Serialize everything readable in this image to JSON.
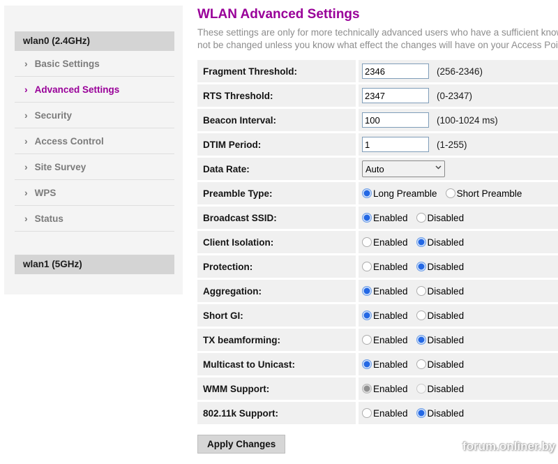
{
  "page": {
    "title": "WLAN Advanced Settings",
    "description_line1": "These settings are only for more technically advanced users who have a sufficient knowledge about wireless LAN. These settings should",
    "description_line2": "not be changed unless you know what effect the changes will have on your Access Point."
  },
  "sidebar": {
    "chevron": "›",
    "sections": [
      {
        "header": "wlan0 (2.4GHz)"
      },
      {
        "header": "wlan1 (5GHz)"
      }
    ],
    "items": [
      {
        "id": "basic-settings",
        "label": "Basic Settings",
        "active": false
      },
      {
        "id": "advanced-settings",
        "label": "Advanced Settings",
        "active": true
      },
      {
        "id": "security",
        "label": "Security",
        "active": false
      },
      {
        "id": "access-control",
        "label": "Access Control",
        "active": false
      },
      {
        "id": "site-survey",
        "label": "Site Survey",
        "active": false
      },
      {
        "id": "wps",
        "label": "WPS",
        "active": false
      },
      {
        "id": "status",
        "label": "Status",
        "active": false
      }
    ]
  },
  "form": {
    "rows": [
      {
        "id": "fragment-threshold",
        "label": "Fragment Threshold:",
        "type": "input",
        "value": "2346",
        "hint": "(256-2346)"
      },
      {
        "id": "rts-threshold",
        "label": "RTS Threshold:",
        "type": "input",
        "value": "2347",
        "hint": "(0-2347)"
      },
      {
        "id": "beacon-interval",
        "label": "Beacon Interval:",
        "type": "input",
        "value": "100",
        "hint": "(100-1024 ms)"
      },
      {
        "id": "dtim-period",
        "label": "DTIM Period:",
        "type": "input",
        "value": "1",
        "hint": "(1-255)"
      },
      {
        "id": "data-rate",
        "label": "Data Rate:",
        "type": "select",
        "value": "Auto"
      },
      {
        "id": "preamble-type",
        "label": "Preamble Type:",
        "type": "radio",
        "options": [
          {
            "label": "Long Preamble",
            "checked": true
          },
          {
            "label": "Short Preamble",
            "checked": false
          }
        ]
      },
      {
        "id": "broadcast-ssid",
        "label": "Broadcast SSID:",
        "type": "radio",
        "options": [
          {
            "label": "Enabled",
            "checked": true
          },
          {
            "label": "Disabled",
            "checked": false
          }
        ]
      },
      {
        "id": "client-isolation",
        "label": "Client Isolation:",
        "type": "radio",
        "options": [
          {
            "label": "Enabled",
            "checked": false
          },
          {
            "label": "Disabled",
            "checked": true
          }
        ]
      },
      {
        "id": "protection",
        "label": "Protection:",
        "type": "radio",
        "options": [
          {
            "label": "Enabled",
            "checked": false
          },
          {
            "label": "Disabled",
            "checked": true
          }
        ]
      },
      {
        "id": "aggregation",
        "label": "Aggregation:",
        "type": "radio",
        "options": [
          {
            "label": "Enabled",
            "checked": true
          },
          {
            "label": "Disabled",
            "checked": false
          }
        ]
      },
      {
        "id": "short-gi",
        "label": "Short GI:",
        "type": "radio",
        "options": [
          {
            "label": "Enabled",
            "checked": true
          },
          {
            "label": "Disabled",
            "checked": false
          }
        ]
      },
      {
        "id": "tx-beamforming",
        "label": "TX beamforming:",
        "type": "radio",
        "options": [
          {
            "label": "Enabled",
            "checked": false
          },
          {
            "label": "Disabled",
            "checked": true
          }
        ]
      },
      {
        "id": "multicast-to-unicast",
        "label": "Multicast to Unicast:",
        "type": "radio",
        "options": [
          {
            "label": "Enabled",
            "checked": true
          },
          {
            "label": "Disabled",
            "checked": false
          }
        ]
      },
      {
        "id": "wmm-support",
        "label": "WMM Support:",
        "type": "radio",
        "disabled": true,
        "options": [
          {
            "label": "Enabled",
            "checked": true
          },
          {
            "label": "Disabled",
            "checked": false
          }
        ]
      },
      {
        "id": "802-11k-support",
        "label": "802.11k Support:",
        "type": "radio",
        "options": [
          {
            "label": "Enabled",
            "checked": false
          },
          {
            "label": "Disabled",
            "checked": true
          }
        ]
      }
    ],
    "apply_label": "Apply Changes"
  },
  "watermark": "forum.onliner.by",
  "colors": {
    "accent": "#990099",
    "radio_checked": "#2468e4",
    "radio_checked_disabled": "#909090",
    "panel_bg": "#f4f4f4",
    "header_bar_bg": "#d4d4d4",
    "cell_bg": "#f0f0f0"
  }
}
